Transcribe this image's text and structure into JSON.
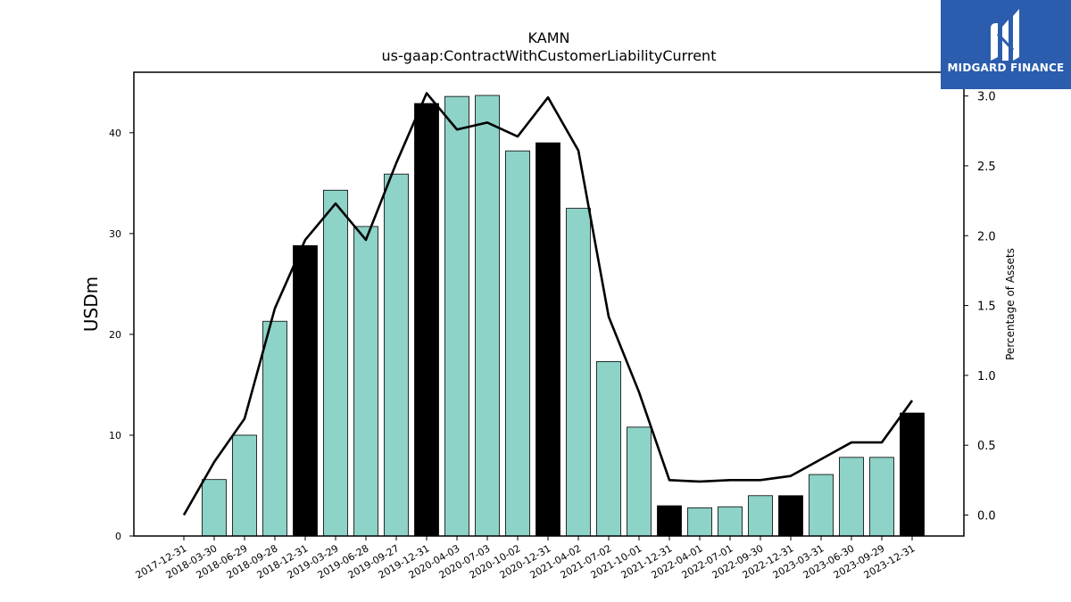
{
  "chart_data": {
    "type": "bar",
    "title": "KAMN",
    "subtitle": "us-gaap:ContractWithCustomerLiabilityCurrent",
    "ylabel": "USDm",
    "y2label": "Percentage of Assets",
    "ylim": [
      0,
      46
    ],
    "y2lim": [
      -0.15,
      3.17
    ],
    "yticks": [
      0,
      10,
      20,
      30,
      40
    ],
    "y2ticks": [
      "0.0",
      "0.5",
      "1.0",
      "1.5",
      "2.0",
      "2.5",
      "3.0"
    ],
    "categories": [
      "2017-12-31",
      "2018-03-30",
      "2018-06-29",
      "2018-09-28",
      "2018-12-31",
      "2019-03-29",
      "2019-06-28",
      "2019-09-27",
      "2019-12-31",
      "2020-04-03",
      "2020-07-03",
      "2020-10-02",
      "2020-12-31",
      "2021-04-02",
      "2021-07-02",
      "2021-10-01",
      "2021-12-31",
      "2022-04-01",
      "2022-07-01",
      "2022-09-30",
      "2022-12-31",
      "2023-03-31",
      "2023-06-30",
      "2023-09-29",
      "2023-12-31"
    ],
    "series": [
      {
        "kind": "bar",
        "values": [
          0,
          5.6,
          10.0,
          21.3,
          28.8,
          34.3,
          30.7,
          35.9,
          42.9,
          43.6,
          43.7,
          38.2,
          39.0,
          32.5,
          17.3,
          10.8,
          3.0,
          2.8,
          2.9,
          4.0,
          4.0,
          6.1,
          7.8,
          7.8,
          12.2
        ],
        "highlight": [
          false,
          false,
          false,
          false,
          true,
          false,
          false,
          false,
          true,
          false,
          false,
          false,
          true,
          false,
          false,
          false,
          true,
          false,
          false,
          false,
          true,
          false,
          false,
          false,
          true
        ]
      },
      {
        "kind": "line",
        "axis": "right",
        "values": [
          0.0,
          0.38,
          0.69,
          1.48,
          1.97,
          2.23,
          1.97,
          2.52,
          3.02,
          2.76,
          2.81,
          2.71,
          2.99,
          2.61,
          1.42,
          0.88,
          0.25,
          0.24,
          0.25,
          0.25,
          0.28,
          0.4,
          0.52,
          0.52,
          0.82
        ]
      }
    ],
    "colors": {
      "bar": "#8dd3c7",
      "bar_highlight": "#000000",
      "line": "#000000"
    }
  },
  "logo": {
    "text": "MIDGARD FINANCE"
  }
}
